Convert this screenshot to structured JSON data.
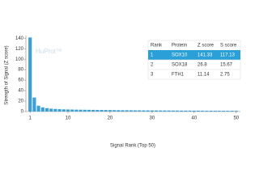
{
  "chart_data": {
    "type": "bar",
    "watermark": "HuProt™",
    "x_label": "Signal Rank (Top 50)",
    "y_label": "Strength of Signal (Z score)",
    "color": "#3d9fd6",
    "x": [
      1,
      2,
      3,
      4,
      5,
      6,
      7,
      8,
      9,
      10,
      11,
      12,
      13,
      14,
      15,
      16,
      17,
      18,
      19,
      20,
      21,
      22,
      23,
      24,
      25,
      26,
      27,
      28,
      29,
      30,
      31,
      32,
      33,
      34,
      35,
      36,
      37,
      38,
      39,
      40,
      41,
      42,
      43,
      44,
      45,
      46,
      47,
      48,
      49,
      50
    ],
    "values": [
      141.33,
      26.8,
      11.14,
      8,
      6.5,
      5.5,
      5,
      4.5,
      4.2,
      4,
      3.8,
      3.6,
      3.5,
      3.4,
      3.3,
      3.2,
      3.1,
      3,
      2.9,
      2.8,
      2.7,
      2.6,
      2.5,
      2.5,
      2.4,
      2.3,
      2.3,
      2.2,
      2.2,
      2.1,
      2.1,
      2,
      2,
      2,
      1.9,
      1.9,
      1.8,
      1.8,
      1.8,
      1.7,
      1.7,
      1.7,
      1.6,
      1.6,
      1.6,
      1.5,
      1.5,
      1.5,
      1.5,
      1.4
    ],
    "xlim": [
      0,
      51
    ],
    "xticks": [
      1,
      10,
      20,
      30,
      40,
      50
    ],
    "ylim": [
      0,
      145
    ],
    "yticks": [
      0,
      20,
      40,
      60,
      80,
      100,
      120,
      140
    ],
    "table": {
      "columns": [
        "Rank",
        "Protein",
        "Z score",
        "S score"
      ],
      "rows": [
        [
          "1",
          "SOX10",
          "141.33",
          "117.13"
        ],
        [
          "2",
          "SOX18",
          "26.8",
          "15.67"
        ],
        [
          "3",
          "FTH1",
          "11.14",
          "2.75"
        ]
      ],
      "highlight_color": "#2a9fd8"
    }
  }
}
